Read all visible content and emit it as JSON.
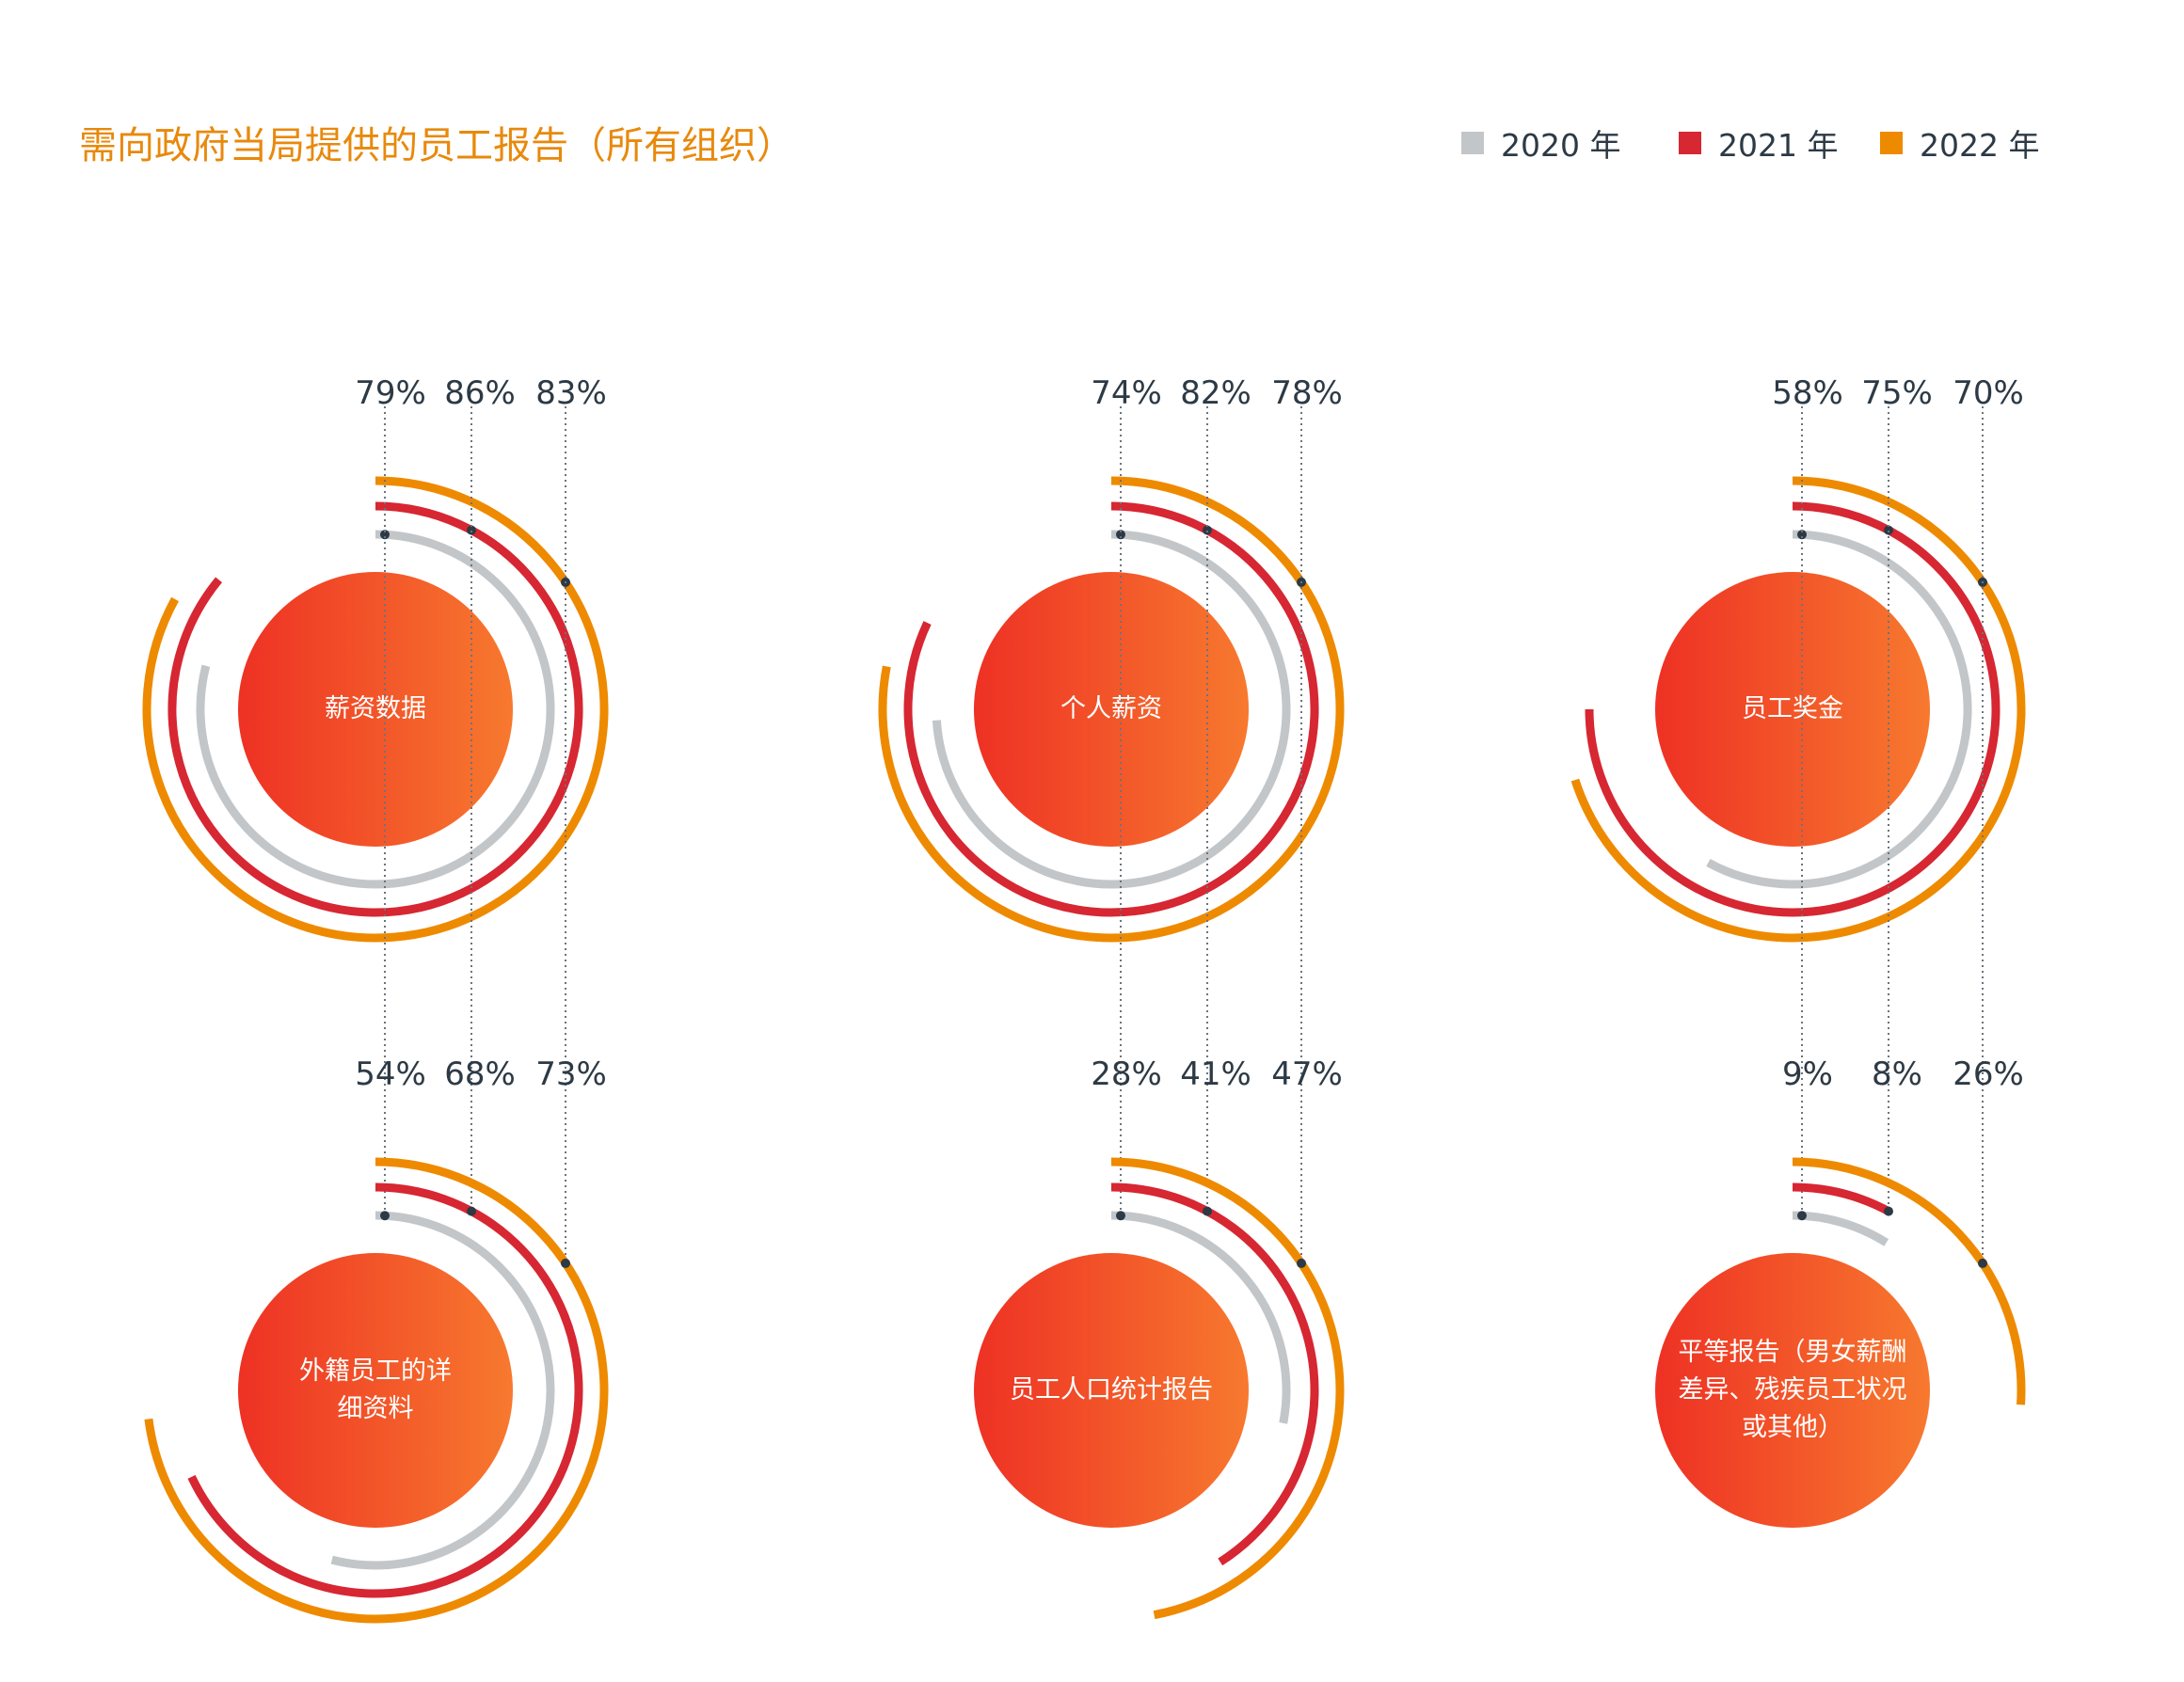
{
  "title": "需向政府当局提供的员工报告（所有组织）",
  "legend": [
    {
      "label": "2020 年",
      "color": "#C3C6C9"
    },
    {
      "label": "2021 年",
      "color": "#D62732"
    },
    {
      "label": "2022 年",
      "color": "#EE8A00"
    }
  ],
  "chart_data": {
    "type": "radial-bar",
    "title": "需向政府当局提供的员工报告（所有组织）",
    "series_names": [
      "2020 年",
      "2021 年",
      "2022 年"
    ],
    "unit": "%",
    "categories": [
      {
        "label": "薪资数据",
        "values": [
          79,
          86,
          83
        ],
        "value_labels": [
          "79%",
          "86%",
          "83%"
        ]
      },
      {
        "label": "个人薪资",
        "values": [
          74,
          82,
          78
        ],
        "value_labels": [
          "74%",
          "82%",
          "78%"
        ]
      },
      {
        "label": "员工奖金",
        "values": [
          58,
          75,
          70
        ],
        "value_labels": [
          "58%",
          "75%",
          "70%"
        ]
      },
      {
        "label": "外籍员工的详细资料",
        "values": [
          54,
          68,
          73
        ],
        "value_labels": [
          "54%",
          "68%",
          "73%"
        ]
      },
      {
        "label": "员工人口统计报告",
        "values": [
          28,
          41,
          47
        ],
        "value_labels": [
          "28%",
          "41%",
          "47%"
        ]
      },
      {
        "label": "平等报告（男女薪酬差异、残疾员工状况或其他）",
        "values": [
          9,
          8,
          26
        ],
        "value_labels": [
          "9%",
          "8%",
          "26%"
        ]
      }
    ]
  }
}
